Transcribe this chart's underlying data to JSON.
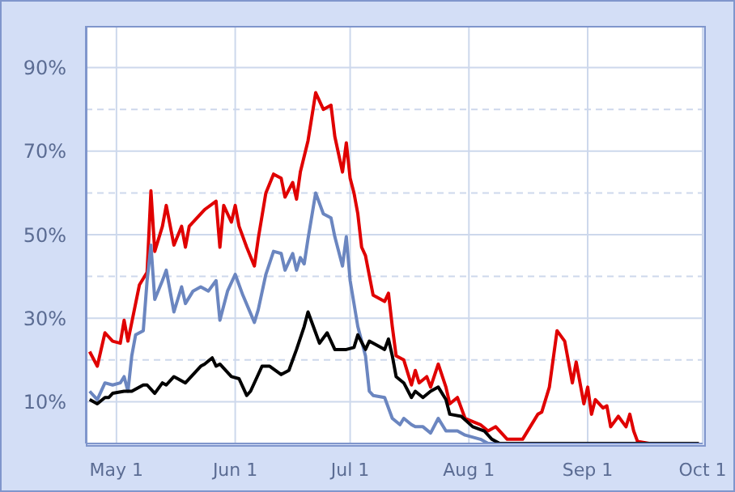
{
  "chart_data": {
    "type": "line",
    "xlim": [
      "--04-23",
      "--10-01"
    ],
    "xticks": [
      {
        "value": "--05-01",
        "label": "May 1"
      },
      {
        "value": "--06-01",
        "label": "Jun 1"
      },
      {
        "value": "--07-01",
        "label": "Jul 1"
      },
      {
        "value": "--08-01",
        "label": "Aug 1"
      },
      {
        "value": "--09-01",
        "label": "Sep 1"
      },
      {
        "value": "--10-01",
        "label": "Oct 1"
      }
    ],
    "ylim": [
      0,
      100
    ],
    "yticks": [
      {
        "value": 10,
        "label": "10%"
      },
      {
        "value": 20,
        "label": null
      },
      {
        "value": 30,
        "label": "30%"
      },
      {
        "value": 40,
        "label": null
      },
      {
        "value": 50,
        "label": "50%"
      },
      {
        "value": 60,
        "label": null
      },
      {
        "value": 70,
        "label": "70%"
      },
      {
        "value": 80,
        "label": null
      },
      {
        "value": 90,
        "label": "90%"
      }
    ],
    "grid": true,
    "marker": "none",
    "line_style": "solid",
    "series": [
      {
        "color": "#e00000",
        "x": [
          "--04-24",
          "--04-26",
          "--04-28",
          "--04-30",
          "--05-02",
          "--05-03",
          "--05-04",
          "--05-05",
          "--05-07",
          "--05-09",
          "--05-10",
          "--05-11",
          "--05-13",
          "--05-14",
          "--05-16",
          "--05-18",
          "--05-19",
          "--05-20",
          "--05-24",
          "--05-27",
          "--05-28",
          "--05-29",
          "--05-31",
          "--06-01",
          "--06-02",
          "--06-04",
          "--06-06",
          "--06-07",
          "--06-09",
          "--06-11",
          "--06-13",
          "--06-14",
          "--06-16",
          "--06-17",
          "--06-18",
          "--06-20",
          "--06-22",
          "--06-24",
          "--06-26",
          "--06-27",
          "--06-29",
          "--06-30",
          "--07-01",
          "--07-02",
          "--07-03",
          "--07-04",
          "--07-05",
          "--07-07",
          "--07-10",
          "--07-11",
          "--07-12",
          "--07-13",
          "--07-15",
          "--07-17",
          "--07-18",
          "--07-19",
          "--07-21",
          "--07-22",
          "--07-24",
          "--07-26",
          "--07-27",
          "--07-29",
          "--07-31",
          "--08-04",
          "--08-06",
          "--08-08",
          "--08-11",
          "--08-15",
          "--08-19",
          "--08-20",
          "--08-22",
          "--08-24",
          "--08-26",
          "--08-28",
          "--08-29",
          "--08-31",
          "--09-01",
          "--09-02",
          "--09-03",
          "--09-05",
          "--09-06",
          "--09-07",
          "--09-09",
          "--09-11",
          "--09-12",
          "--09-13",
          "--09-14",
          "--09-17",
          "--09-30"
        ],
        "values": [
          22,
          18.5,
          26.5,
          24.5,
          24,
          29.5,
          24.5,
          29,
          38,
          41,
          60.5,
          46,
          52,
          57,
          47.5,
          52,
          47,
          52,
          56,
          58,
          47,
          57,
          53,
          57,
          52,
          47,
          42.5,
          49,
          60,
          64.5,
          63.5,
          59,
          62.5,
          58.5,
          65,
          72.5,
          84,
          80,
          81,
          73.5,
          65,
          72,
          63.5,
          60,
          55,
          47,
          45,
          35.5,
          34,
          36,
          28,
          21,
          20,
          14,
          17.5,
          14.5,
          16,
          13.5,
          19,
          13.5,
          9.5,
          11,
          6,
          4.5,
          3,
          4,
          1,
          1,
          7,
          7.5,
          13.5,
          27,
          24.5,
          14.5,
          19.5,
          9.5,
          13.5,
          7,
          10.5,
          8.5,
          9,
          4,
          6.5,
          4,
          7,
          3,
          0.5,
          0,
          0
        ]
      },
      {
        "color": "#6b86c0",
        "x": [
          "--04-24",
          "--04-26",
          "--04-28",
          "--04-30",
          "--05-02",
          "--05-03",
          "--05-04",
          "--05-05",
          "--05-06",
          "--05-08",
          "--05-09",
          "--05-10",
          "--05-11",
          "--05-13",
          "--05-14",
          "--05-16",
          "--05-18",
          "--05-19",
          "--05-21",
          "--05-23",
          "--05-25",
          "--05-27",
          "--05-28",
          "--05-30",
          "--06-01",
          "--06-03",
          "--06-06",
          "--06-07",
          "--06-09",
          "--06-11",
          "--06-13",
          "--06-14",
          "--06-16",
          "--06-17",
          "--06-18",
          "--06-19",
          "--06-20",
          "--06-22",
          "--06-24",
          "--06-26",
          "--06-27",
          "--06-29",
          "--06-30",
          "--07-01",
          "--07-03",
          "--07-05",
          "--07-06",
          "--07-07",
          "--07-10",
          "--07-12",
          "--07-14",
          "--07-15",
          "--07-17",
          "--07-18",
          "--07-20",
          "--07-22",
          "--07-24",
          "--07-26",
          "--07-29",
          "--07-31",
          "--08-04",
          "--08-06",
          "--09-30"
        ],
        "values": [
          12.5,
          10.5,
          14.5,
          14,
          14.5,
          16,
          12.5,
          21,
          26,
          27,
          39,
          47.5,
          34.5,
          39,
          41.5,
          31.5,
          37.5,
          33.5,
          36.5,
          37.5,
          36.5,
          39,
          29.5,
          36.5,
          40.5,
          35.5,
          29,
          32,
          40.5,
          46,
          45.5,
          41.5,
          45.5,
          41.5,
          44.5,
          43,
          49,
          60,
          55,
          54,
          49.5,
          42.5,
          49.5,
          39,
          28,
          21,
          12.5,
          11.5,
          11,
          6,
          4.5,
          6,
          4.5,
          4,
          4,
          2.5,
          6,
          3,
          3,
          2,
          1,
          0,
          0
        ]
      },
      {
        "color": "#000000",
        "x": [
          "--04-24",
          "--04-26",
          "--04-28",
          "--04-29",
          "--04-30",
          "--05-03",
          "--05-05",
          "--05-08",
          "--05-09",
          "--05-11",
          "--05-13",
          "--05-14",
          "--05-16",
          "--05-17",
          "--05-19",
          "--05-21",
          "--05-23",
          "--05-24",
          "--05-26",
          "--05-27",
          "--05-28",
          "--05-31",
          "--06-02",
          "--06-04",
          "--06-05",
          "--06-08",
          "--06-10",
          "--06-13",
          "--06-15",
          "--06-17",
          "--06-19",
          "--06-20",
          "--06-22",
          "--06-23",
          "--06-25",
          "--06-27",
          "--06-30",
          "--07-02",
          "--07-03",
          "--07-05",
          "--07-06",
          "--07-09",
          "--07-10",
          "--07-11",
          "--07-12",
          "--07-13",
          "--07-15",
          "--07-17",
          "--07-18",
          "--07-20",
          "--07-22",
          "--07-24",
          "--07-26",
          "--07-27",
          "--07-30",
          "--08-02",
          "--08-05",
          "--08-07",
          "--08-09",
          "--09-30"
        ],
        "values": [
          10.5,
          9.5,
          11,
          11,
          12,
          12.5,
          12.5,
          14,
          14,
          12,
          14.5,
          14,
          16,
          15.5,
          14.5,
          16.5,
          18.5,
          19,
          20.5,
          18.5,
          19,
          16,
          15.5,
          11.5,
          12.5,
          18.5,
          18.5,
          16.5,
          17.5,
          22.5,
          28,
          31.5,
          26.5,
          24,
          26.5,
          22.5,
          22.5,
          23,
          26,
          22.5,
          24.5,
          23,
          22.5,
          25,
          21,
          16,
          14.5,
          11,
          12.5,
          11,
          12.5,
          13.5,
          10.5,
          7,
          6.5,
          4,
          3,
          1,
          0,
          0
        ]
      }
    ]
  }
}
